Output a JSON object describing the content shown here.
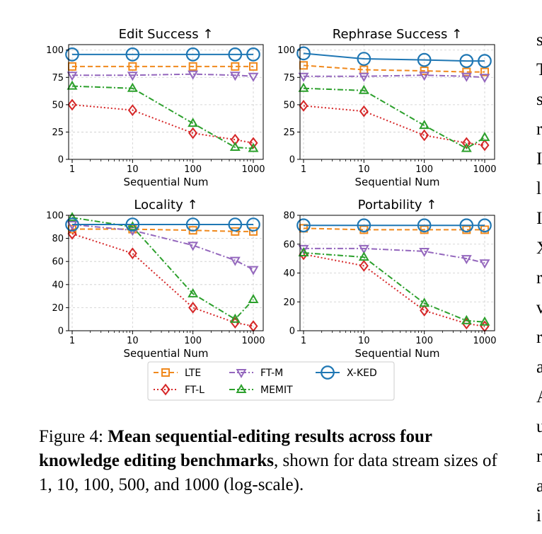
{
  "chart_data": {
    "type": "line",
    "x_scale": "log",
    "x": [
      1,
      10,
      100,
      500,
      1000
    ],
    "grid": true,
    "legend_position": "bottom-center",
    "series_styles": [
      {
        "name": "LTE",
        "color": "#f0891d",
        "dash": "dashed",
        "marker": "square"
      },
      {
        "name": "FT-L",
        "color": "#d62728",
        "dash": "dotted",
        "marker": "diamond"
      },
      {
        "name": "FT-M",
        "color": "#9467bd",
        "dash": "dashdot",
        "marker": "triangle-down"
      },
      {
        "name": "MEMIT",
        "color": "#2ca02c",
        "dash": "dashdot",
        "marker": "triangle-up"
      },
      {
        "name": "X-KED",
        "color": "#1f77b4",
        "dash": "solid",
        "marker": "circle"
      }
    ],
    "panels": [
      {
        "title": "Edit Success ↑",
        "xlabel": "Sequential Num",
        "ylim": [
          0,
          105
        ],
        "yticks": [
          0,
          25,
          50,
          75,
          100
        ],
        "xticks": [
          "1",
          "10",
          "100",
          "1000"
        ],
        "series": [
          {
            "name": "LTE",
            "values": [
              85,
              85,
              85,
              85,
              85
            ]
          },
          {
            "name": "FT-L",
            "values": [
              50,
              45,
              24,
              18,
              15
            ]
          },
          {
            "name": "FT-M",
            "values": [
              77,
              77,
              78,
              77,
              76
            ]
          },
          {
            "name": "MEMIT",
            "values": [
              67,
              65,
              33,
              11,
              10
            ]
          },
          {
            "name": "X-KED",
            "values": [
              96,
              96,
              96,
              96,
              96
            ]
          }
        ]
      },
      {
        "title": "Rephrase Success ↑",
        "xlabel": "Sequential Num",
        "ylim": [
          0,
          105
        ],
        "yticks": [
          0,
          25,
          50,
          75,
          100
        ],
        "xticks": [
          "1",
          "10",
          "100",
          "1000"
        ],
        "series": [
          {
            "name": "LTE",
            "values": [
              86,
              82,
              81,
              80,
              80
            ]
          },
          {
            "name": "FT-L",
            "values": [
              49,
              44,
              22,
              15,
              13
            ]
          },
          {
            "name": "FT-M",
            "values": [
              76,
              76,
              77,
              76,
              75
            ]
          },
          {
            "name": "MEMIT",
            "values": [
              65,
              63,
              31,
              10,
              20
            ]
          },
          {
            "name": "X-KED",
            "values": [
              97,
              92,
              91,
              90,
              90
            ]
          }
        ]
      },
      {
        "title": "Locality ↑",
        "xlabel": "Sequential Num",
        "ylim": [
          0,
          100
        ],
        "yticks": [
          0,
          20,
          40,
          60,
          80,
          100
        ],
        "xticks": [
          "1",
          "10",
          "100",
          "1000"
        ],
        "series": [
          {
            "name": "LTE",
            "values": [
              88,
              88,
              87,
              86,
              86
            ]
          },
          {
            "name": "FT-L",
            "values": [
              84,
              67,
              20,
              7,
              4
            ]
          },
          {
            "name": "FT-M",
            "values": [
              92,
              87,
              74,
              61,
              53
            ]
          },
          {
            "name": "MEMIT",
            "values": [
              98,
              90,
              32,
              10,
              27
            ]
          },
          {
            "name": "X-KED",
            "values": [
              92,
              92,
              92,
              92,
              92
            ]
          }
        ]
      },
      {
        "title": "Portability ↑",
        "xlabel": "Sequential Num",
        "ylim": [
          0,
          80
        ],
        "yticks": [
          0,
          20,
          40,
          60,
          80
        ],
        "xticks": [
          "1",
          "10",
          "100",
          "1000"
        ],
        "series": [
          {
            "name": "LTE",
            "values": [
              71,
              70,
              70,
              70,
              70
            ]
          },
          {
            "name": "FT-L",
            "values": [
              53,
              45,
              14,
              5,
              3
            ]
          },
          {
            "name": "FT-M",
            "values": [
              57,
              57,
              55,
              50,
              47
            ]
          },
          {
            "name": "MEMIT",
            "values": [
              54,
              51,
              19,
              7,
              6
            ]
          },
          {
            "name": "X-KED",
            "values": [
              73,
              73,
              73,
              73,
              73
            ]
          }
        ]
      }
    ],
    "legend": [
      "LTE",
      "FT-M",
      "X-KED",
      "FT-L",
      "MEMIT"
    ]
  },
  "caption": {
    "label": "Figure 4: ",
    "bold": "Mean sequential-editing results across four knowledge editing benchmarks",
    "rest": ", shown for data stream sizes of 1, 10, 100, 500, and 1000 (log-scale)."
  },
  "right_column_glyphs": [
    "s",
    "T",
    "s",
    "r",
    "I",
    "l",
    "I",
    "X",
    "r",
    "v",
    "r",
    "a",
    "A",
    "u",
    "r",
    "a",
    "i"
  ]
}
